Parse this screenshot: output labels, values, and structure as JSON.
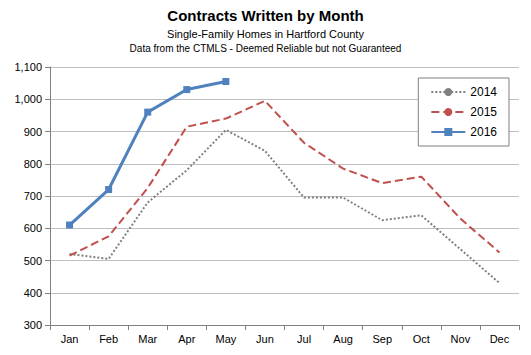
{
  "chart_data": {
    "type": "line",
    "title": "Contracts Written by Month",
    "subtitle": "Single-Family Homes in Hartford County",
    "annotations": [
      "Data from the CTMLS - Deemed Reliable but not Guaranteed"
    ],
    "categories": [
      "Jan",
      "Feb",
      "Mar",
      "Apr",
      "May",
      "Jun",
      "Jul",
      "Aug",
      "Sep",
      "Oct",
      "Nov",
      "Dec"
    ],
    "series": [
      {
        "name": "2014",
        "color": "#808080",
        "line_style": "dotted",
        "marker": "none",
        "values": [
          520,
          505,
          680,
          780,
          905,
          840,
          695,
          695,
          625,
          640,
          535,
          430
        ]
      },
      {
        "name": "2015",
        "color": "#c0504d",
        "line_style": "dashed",
        "marker": "none",
        "values": [
          515,
          575,
          725,
          915,
          940,
          995,
          865,
          785,
          740,
          760,
          630,
          525
        ]
      },
      {
        "name": "2016",
        "color": "#4f81bd",
        "line_style": "solid",
        "marker": "square",
        "values": [
          610,
          720,
          960,
          1030,
          1055,
          null,
          null,
          null,
          null,
          null,
          null,
          null
        ]
      }
    ],
    "ylim": [
      300,
      1100
    ],
    "yticks": [
      300,
      400,
      500,
      600,
      700,
      800,
      900,
      {
        "value": 1000,
        "label": "1,000"
      },
      {
        "value": 1100,
        "label": "1,100"
      }
    ],
    "grid": true,
    "legend": "top-right"
  }
}
